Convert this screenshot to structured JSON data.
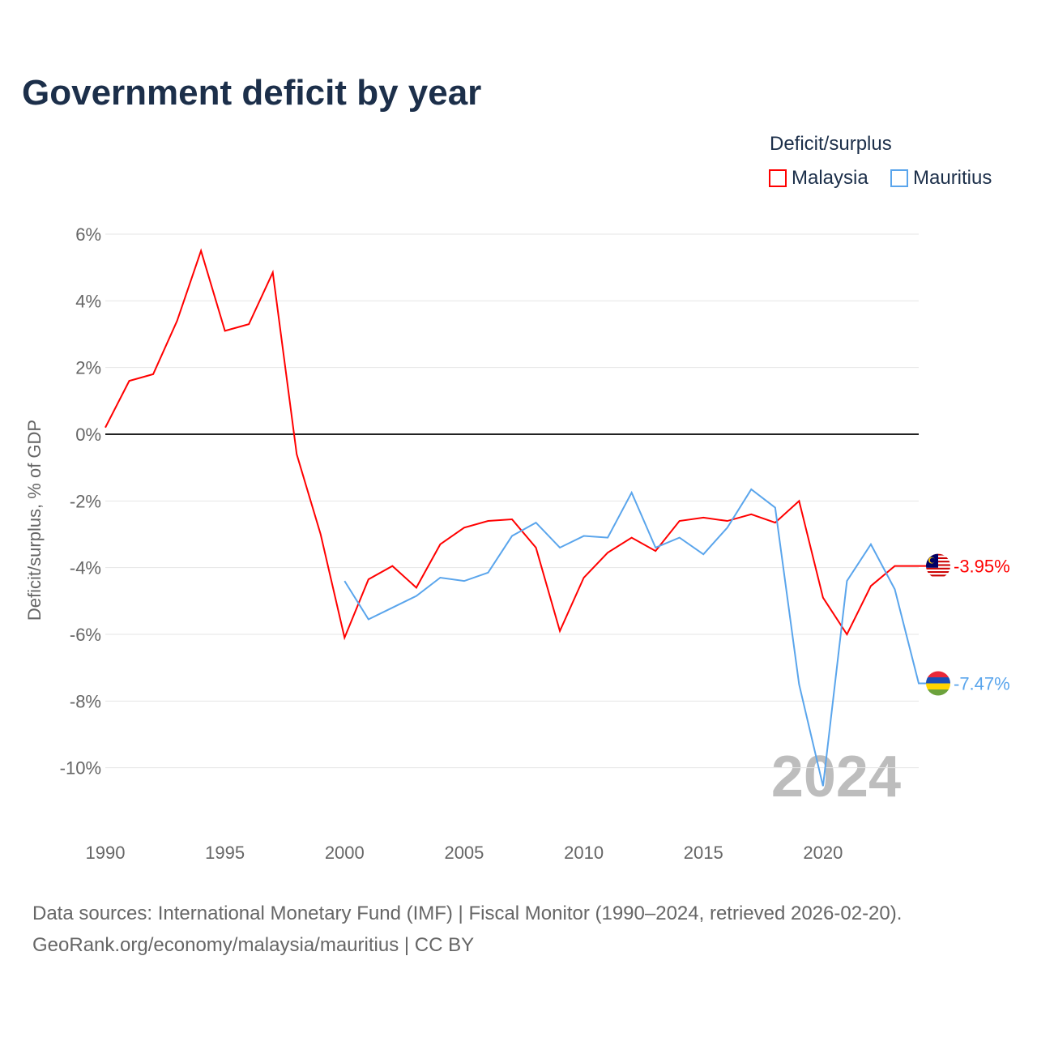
{
  "title": "Government deficit by year",
  "legend": {
    "title": "Deficit/surplus",
    "items": [
      {
        "name": "Malaysia",
        "color": "#ff0000"
      },
      {
        "name": "Mauritius",
        "color": "#5aa5ec"
      }
    ]
  },
  "footer": {
    "line1": "Data sources: International Monetary Fund (IMF) | Fiscal Monitor (1990–2024, retrieved 2026-02-20).",
    "line2": "GeoRank.org/economy/malaysia/mauritius | CC BY"
  },
  "chart_data": {
    "type": "line",
    "title": "Government deficit by year",
    "xlabel": "",
    "ylabel": "Deficit/surplus, % of GDP",
    "xlim": [
      1990,
      2024
    ],
    "ylim": [
      -11,
      6
    ],
    "x_ticks": [
      1990,
      1995,
      2000,
      2005,
      2010,
      2015,
      2020
    ],
    "y_ticks": [
      6,
      4,
      2,
      0,
      -2,
      -4,
      -6,
      -8,
      -10
    ],
    "y_tick_labels": [
      "6%",
      "4%",
      "2%",
      "0%",
      "-2%",
      "-4%",
      "-6%",
      "-8%",
      "-10%"
    ],
    "year_watermark": "2024",
    "series": [
      {
        "name": "Malaysia",
        "color": "#ff0000",
        "end_label": "-3.95%",
        "x_start": 1990,
        "values": [
          0.2,
          1.6,
          1.8,
          3.4,
          5.5,
          3.1,
          3.3,
          4.85,
          -0.6,
          -3.0,
          -6.1,
          -4.35,
          -3.95,
          -4.6,
          -3.3,
          -2.8,
          -2.6,
          -2.55,
          -3.4,
          -5.9,
          -4.3,
          -3.55,
          -3.1,
          -3.5,
          -2.6,
          -2.5,
          -2.6,
          -2.4,
          -2.65,
          -2.0,
          -4.9,
          -6.0,
          -4.55,
          -3.95,
          -3.95
        ]
      },
      {
        "name": "Mauritius",
        "color": "#5aa5ec",
        "end_label": "-7.47%",
        "x_start": 2000,
        "values": [
          -4.4,
          -5.55,
          -5.2,
          -4.85,
          -4.3,
          -4.4,
          -4.15,
          -3.05,
          -2.65,
          -3.4,
          -3.05,
          -3.1,
          -1.75,
          -3.4,
          -3.1,
          -3.6,
          -2.8,
          -1.65,
          -2.2,
          -7.5,
          -10.55,
          -4.4,
          -3.3,
          -4.65,
          -7.47
        ]
      }
    ]
  }
}
